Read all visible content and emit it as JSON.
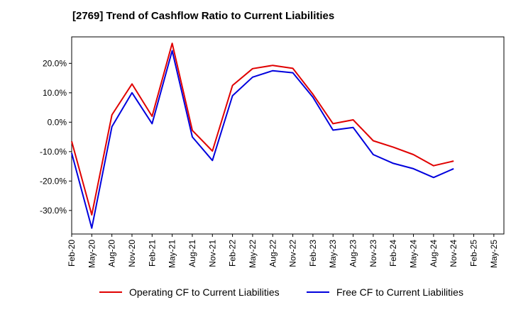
{
  "title": "[2769]  Trend of Cashflow Ratio to Current Liabilities",
  "chart_data": {
    "type": "line",
    "title": "[2769]  Trend of Cashflow Ratio to Current Liabilities",
    "xlabel": "",
    "ylabel": "",
    "categories": [
      "Feb-20",
      "May-20",
      "Aug-20",
      "Nov-20",
      "Feb-21",
      "May-21",
      "Aug-21",
      "Nov-21",
      "Feb-22",
      "May-22",
      "Aug-22",
      "Nov-22",
      "Feb-23",
      "May-23",
      "Aug-23",
      "Nov-23",
      "Feb-24",
      "May-24",
      "Aug-24",
      "Nov-24",
      "Feb-25",
      "May-25"
    ],
    "ylim": [
      -38,
      29
    ],
    "yticks": [
      -30,
      -20,
      -10,
      0,
      10,
      20
    ],
    "ytick_labels": [
      "-30.0%",
      "-20.0%",
      "-10.0%",
      "0.0%",
      "10.0%",
      "20.0%"
    ],
    "grid": true,
    "legend_position": "bottom",
    "series": [
      {
        "name": "Operating CF to Current Liabilities",
        "color": "#e00000",
        "values": [
          -6.5,
          -31.5,
          2.5,
          13.0,
          2.0,
          26.8,
          -2.8,
          -9.8,
          12.5,
          18.2,
          19.3,
          18.3,
          9.5,
          -0.5,
          0.8,
          -6.3,
          -8.5,
          -11.0,
          -14.8,
          -13.2,
          null,
          null
        ]
      },
      {
        "name": "Free CF to Current Liabilities",
        "color": "#0000dd",
        "values": [
          -10.5,
          -36.0,
          -1.5,
          10.0,
          -0.5,
          24.3,
          -5.0,
          -13.0,
          9.0,
          15.3,
          17.5,
          16.8,
          8.5,
          -2.7,
          -1.8,
          -11.0,
          -14.0,
          -15.8,
          -18.8,
          -15.8,
          null,
          null
        ]
      }
    ]
  }
}
